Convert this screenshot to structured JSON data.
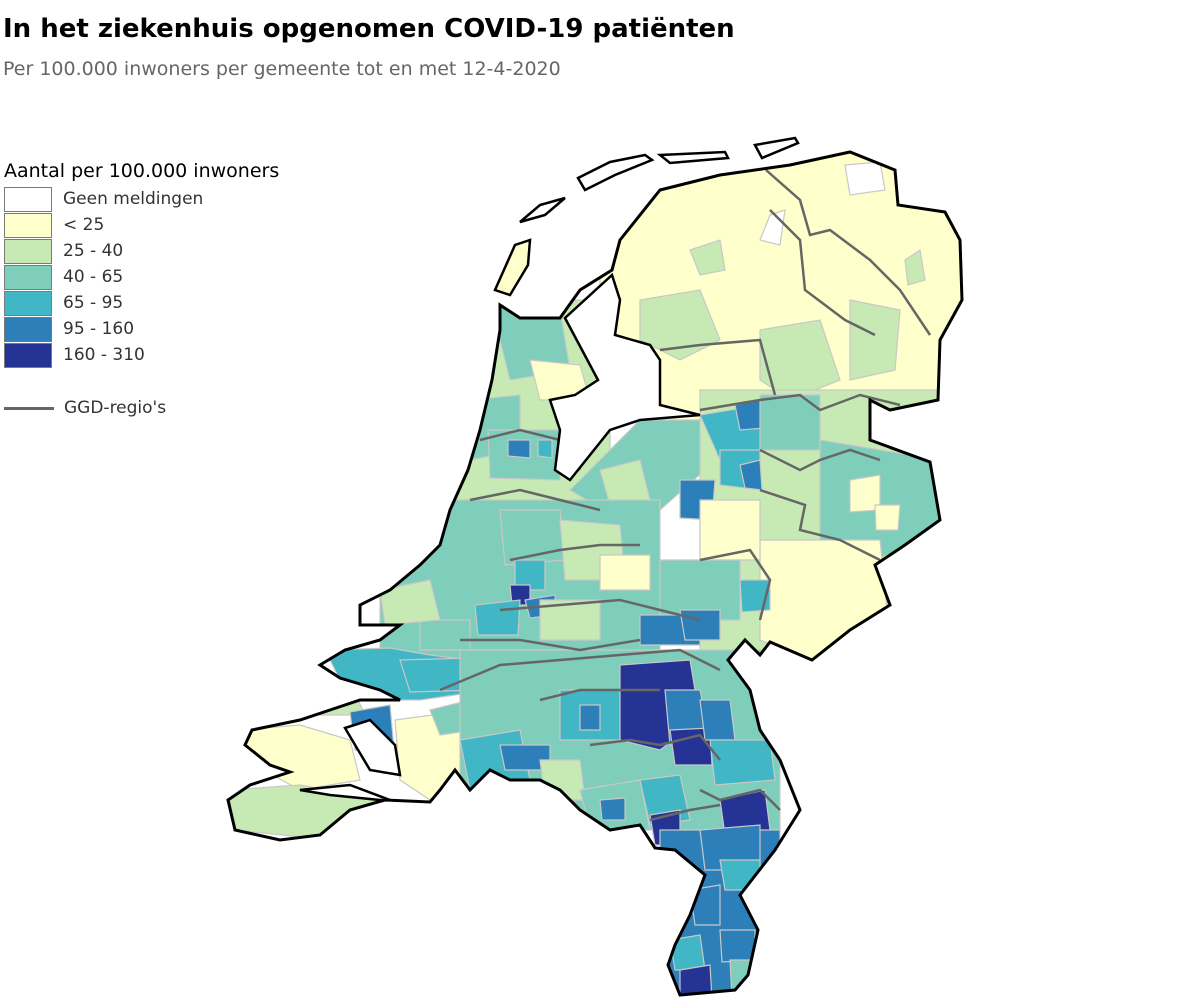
{
  "title": "In het ziekenhuis opgenomen COVID-19 patiënten",
  "subtitle": "Per 100.000 inwoners per gemeente tot en met 12-4-2020",
  "legend": {
    "title": "Aantal per 100.000 inwoners",
    "items": [
      {
        "label": "Geen meldingen",
        "color": "#ffffff"
      },
      {
        "label": "< 25",
        "color": "#ffffcc"
      },
      {
        "label": "25 - 40",
        "color": "#c7e9b4"
      },
      {
        "label": "40 - 65",
        "color": "#7fcdbb"
      },
      {
        "label": "65 - 95",
        "color": "#41b6c4"
      },
      {
        "label": "95 - 160",
        "color": "#2c7fb8"
      },
      {
        "label": "160 - 310",
        "color": "#253494"
      }
    ],
    "ggd_label": "GGD-regio's",
    "ggd_color": "#666666"
  }
}
